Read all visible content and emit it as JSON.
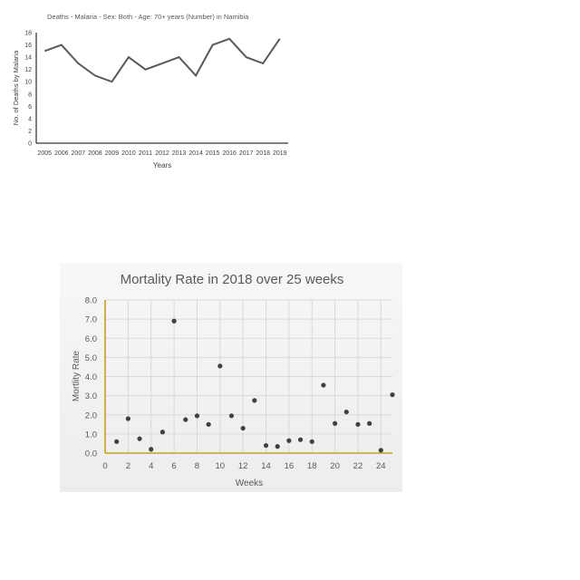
{
  "chart_data": [
    {
      "type": "line",
      "title": "Deaths - Malaria - Sex: Both - Age: 70+ years (Number) in Namibia",
      "xlabel": "Years",
      "ylabel": "No. of Deaths by Malaria",
      "x": [
        "2005",
        "2006",
        "2007",
        "2008",
        "2009",
        "2010",
        "2011",
        "2012",
        "2013",
        "2014",
        "2015",
        "2016",
        "2017",
        "2018",
        "2019"
      ],
      "series": [
        {
          "values": [
            15,
            16,
            13,
            11,
            10,
            14,
            12,
            13,
            14,
            11,
            16,
            17,
            14,
            13,
            17
          ]
        }
      ],
      "ylim": [
        0,
        18
      ],
      "yticks": [
        "0",
        "2",
        "4",
        "6",
        "8",
        "10",
        "12",
        "14",
        "16",
        "18"
      ],
      "grid": false,
      "line_color": "#595959"
    },
    {
      "type": "scatter",
      "title": "Mortality Rate in 2018 over 25 weeks",
      "xlabel": "Weeks",
      "ylabel": "Mortlity Rate",
      "xlim": [
        0,
        25
      ],
      "ylim": [
        0,
        8
      ],
      "xticks": [
        "0",
        "2",
        "4",
        "6",
        "8",
        "10",
        "12",
        "14",
        "16",
        "18",
        "20",
        "22",
        "24"
      ],
      "yticks": [
        "0.0",
        "1.0",
        "2.0",
        "3.0",
        "4.0",
        "5.0",
        "6.0",
        "7.0",
        "8.0"
      ],
      "grid": true,
      "axis_color": "#c5a21b",
      "marker_color": "#404040",
      "points": [
        {
          "x": 1,
          "y": 0.6
        },
        {
          "x": 2,
          "y": 1.8
        },
        {
          "x": 3,
          "y": 0.75
        },
        {
          "x": 4,
          "y": 0.2
        },
        {
          "x": 5,
          "y": 1.1
        },
        {
          "x": 6,
          "y": 6.9
        },
        {
          "x": 7,
          "y": 1.75
        },
        {
          "x": 8,
          "y": 1.95
        },
        {
          "x": 9,
          "y": 1.5
        },
        {
          "x": 10,
          "y": 4.55
        },
        {
          "x": 11,
          "y": 1.95
        },
        {
          "x": 12,
          "y": 1.3
        },
        {
          "x": 13,
          "y": 2.75
        },
        {
          "x": 14,
          "y": 0.4
        },
        {
          "x": 15,
          "y": 0.35
        },
        {
          "x": 16,
          "y": 0.65
        },
        {
          "x": 17,
          "y": 0.7
        },
        {
          "x": 18,
          "y": 0.6
        },
        {
          "x": 19,
          "y": 3.55
        },
        {
          "x": 20,
          "y": 1.55
        },
        {
          "x": 21,
          "y": 2.15
        },
        {
          "x": 22,
          "y": 1.5
        },
        {
          "x": 23,
          "y": 1.55
        },
        {
          "x": 24,
          "y": 0.15
        },
        {
          "x": 25,
          "y": 3.05
        }
      ]
    }
  ]
}
